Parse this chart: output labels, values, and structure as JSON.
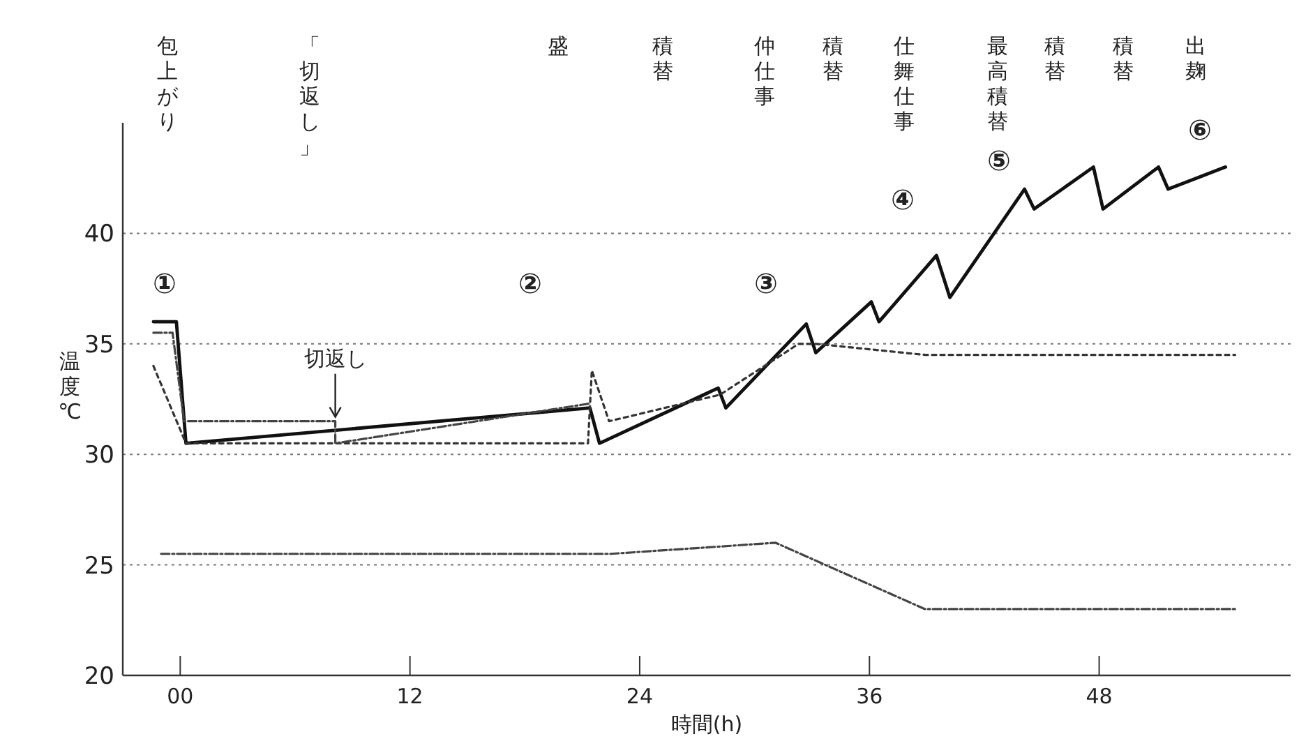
{
  "chart_data": {
    "type": "line",
    "ylabel": "温度℃",
    "xlabel": "時間(h)",
    "xlim": [
      -3,
      58
    ],
    "ylim": [
      20,
      45
    ],
    "xticks": [
      {
        "value": 0,
        "label": "00"
      },
      12,
      24,
      36,
      48
    ],
    "yticks": [
      20,
      25,
      30,
      35,
      40
    ],
    "grid": "y",
    "series": [
      {
        "x": [
          -1.4,
          -0.2,
          0.3,
          21.4,
          21.9,
          28.1,
          28.5,
          32.7,
          33.2,
          36.1,
          36.5,
          39.5,
          40.2,
          44.1,
          44.6,
          47.7,
          48.2,
          51.1,
          51.6,
          54.6
        ],
        "values": [
          36,
          36,
          30.5,
          32.1,
          30.5,
          33,
          32.1,
          35.9,
          34.6,
          36.9,
          36,
          39,
          37.1,
          42,
          41.1,
          43,
          41.1,
          43,
          42,
          43
        ],
        "color": "#111111",
        "line_style": "solid"
      },
      {
        "x": [
          -1.4,
          0.3,
          21.3,
          21.5,
          22.4,
          28.2,
          32.3,
          33.2,
          38.9,
          55.1
        ],
        "values": [
          34,
          30.5,
          30.5,
          33.8,
          31.5,
          32.7,
          35,
          35,
          34.5,
          34.5
        ],
        "color": "#333333",
        "line_style": "dotted"
      },
      {
        "x": [
          -1.4,
          -0.4,
          0.2,
          8.1,
          8.1,
          21.4
        ],
        "values": [
          35.5,
          35.5,
          31.5,
          31.5,
          30.5,
          32.3
        ],
        "color": "#444444",
        "line_style": "dashed"
      },
      {
        "x": [
          -1,
          22.5,
          31.1,
          38.9,
          55.2
        ],
        "values": [
          25.5,
          25.5,
          26,
          23,
          23
        ],
        "color": "#444444",
        "line_style": "dashed"
      }
    ],
    "annotations": [
      "包上がり",
      "「切返し」",
      "盛",
      "積替",
      "仲仕事",
      "積替",
      "仕舞仕事",
      "最高積替",
      "積替",
      "積替",
      "出麹",
      "①",
      "②",
      "③",
      "④",
      "⑤",
      "⑥",
      {
        "text": "切返し",
        "x": 8.1,
        "y": 31.5
      }
    ]
  }
}
